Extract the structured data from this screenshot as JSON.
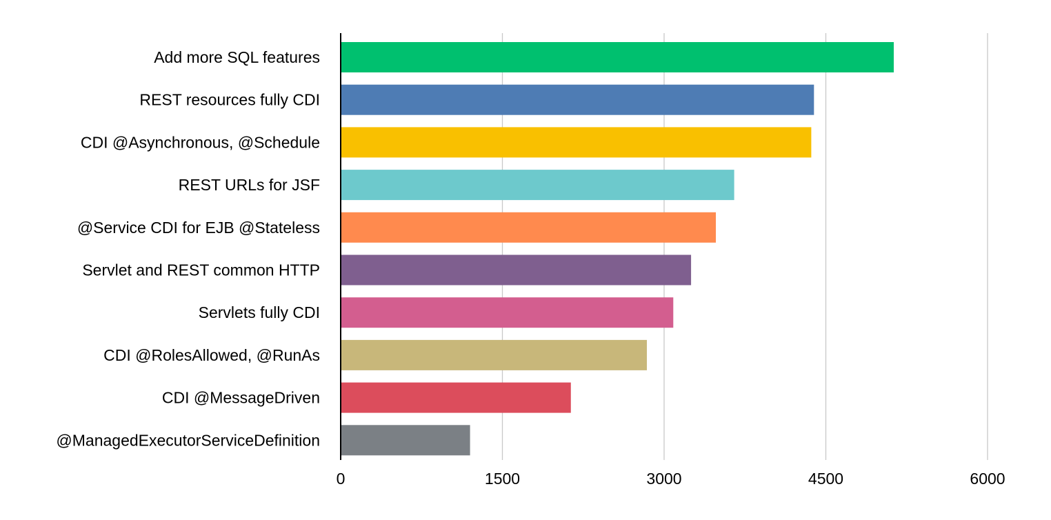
{
  "chart_data": {
    "type": "bar",
    "orientation": "horizontal",
    "title": "",
    "xlabel": "",
    "ylabel": "",
    "xlim": [
      0,
      6000
    ],
    "xticks": [
      0,
      1500,
      3000,
      4500,
      6000
    ],
    "xtick_labels": [
      "0",
      "1500",
      "3000",
      "4500",
      "6000"
    ],
    "grid": "vertical",
    "legend": "none",
    "categories": [
      "Add more SQL features",
      "REST resources fully CDI",
      "CDI @Asynchronous, @Schedule",
      "REST URLs for JSF",
      "@Service CDI for EJB @Stateless",
      "Servlet and REST common HTTP",
      "Servlets fully CDI",
      "CDI @RolesAllowed, @RunAs",
      "CDI @MessageDriven",
      "@ManagedExecutorServiceDefinition"
    ],
    "values": [
      5130,
      4390,
      4365,
      3650,
      3480,
      3250,
      3085,
      2840,
      2135,
      1200
    ],
    "colors": [
      "#00c06f",
      "#4e7cb4",
      "#f9c000",
      "#6dc9cc",
      "#ff8a4e",
      "#7f5f8f",
      "#d35e8f",
      "#c8b77a",
      "#dc4d5c",
      "#7b8085"
    ]
  }
}
